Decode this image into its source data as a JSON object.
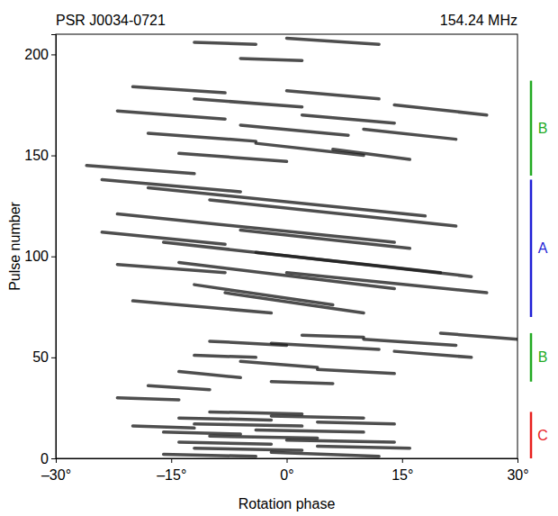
{
  "chart_data": {
    "type": "pulse_stack",
    "title": "PSR J0034-0721",
    "subtitle": "154.24 MHz",
    "x_label": "Rotation phase",
    "y_label": "Pulse number",
    "xlim": [
      -30,
      30
    ],
    "xticks": [
      {
        "value": -30,
        "label": "–30°"
      },
      {
        "value": -15,
        "label": "–15°"
      },
      {
        "value": 0,
        "label": "0°"
      },
      {
        "value": 15,
        "label": "15°"
      },
      {
        "value": 30,
        "label": "30°"
      }
    ],
    "ylim": [
      0,
      210
    ],
    "yticks": [
      0,
      50,
      100,
      150,
      200
    ],
    "modes": [
      {
        "label": "C",
        "color": "#e8201e",
        "start": 0,
        "end": 23
      },
      {
        "label": "B",
        "color": "#22aa22",
        "start": 38,
        "end": 62
      },
      {
        "label": "A",
        "color": "#1f1fd6",
        "start": 70,
        "end": 138
      },
      {
        "label": "B",
        "color": "#22aa22",
        "start": 140,
        "end": 187
      }
    ],
    "subpulses": [
      {
        "phase": [
          -16,
          -4
        ],
        "pulse": [
          2,
          1
        ]
      },
      {
        "phase": [
          -2,
          12
        ],
        "pulse": [
          3,
          1
        ]
      },
      {
        "phase": [
          -12,
          2
        ],
        "pulse": [
          5,
          4
        ]
      },
      {
        "phase": [
          4,
          16
        ],
        "pulse": [
          6,
          5
        ]
      },
      {
        "phase": [
          -14,
          -2
        ],
        "pulse": [
          8,
          7
        ]
      },
      {
        "phase": [
          0,
          14
        ],
        "pulse": [
          9,
          8
        ]
      },
      {
        "phase": [
          -10,
          4
        ],
        "pulse": [
          11,
          10
        ]
      },
      {
        "phase": [
          -16,
          -6
        ],
        "pulse": [
          13,
          12
        ]
      },
      {
        "phase": [
          -4,
          10
        ],
        "pulse": [
          14,
          13
        ]
      },
      {
        "phase": [
          -20,
          -12
        ],
        "pulse": [
          16,
          15
        ]
      },
      {
        "phase": [
          -12,
          2
        ],
        "pulse": [
          17,
          16
        ]
      },
      {
        "phase": [
          4,
          14
        ],
        "pulse": [
          18,
          17
        ]
      },
      {
        "phase": [
          -14,
          -2
        ],
        "pulse": [
          20,
          19
        ]
      },
      {
        "phase": [
          -2,
          10
        ],
        "pulse": [
          21,
          20
        ]
      },
      {
        "phase": [
          -10,
          2
        ],
        "pulse": [
          23,
          22
        ]
      },
      {
        "phase": [
          -22,
          -14
        ],
        "pulse": [
          30,
          29
        ]
      },
      {
        "phase": [
          -18,
          -10
        ],
        "pulse": [
          36,
          34
        ]
      },
      {
        "phase": [
          -2,
          6
        ],
        "pulse": [
          38,
          37
        ]
      },
      {
        "phase": [
          -14,
          -6
        ],
        "pulse": [
          43,
          40
        ]
      },
      {
        "phase": [
          4,
          14
        ],
        "pulse": [
          44,
          42
        ]
      },
      {
        "phase": [
          -6,
          4
        ],
        "pulse": [
          48,
          45
        ]
      },
      {
        "phase": [
          -12,
          -4
        ],
        "pulse": [
          51,
          50
        ]
      },
      {
        "phase": [
          14,
          24
        ],
        "pulse": [
          53,
          50
        ]
      },
      {
        "phase": [
          -2,
          12
        ],
        "pulse": [
          57,
          54
        ]
      },
      {
        "phase": [
          -10,
          0
        ],
        "pulse": [
          58,
          56
        ]
      },
      {
        "phase": [
          10,
          22
        ],
        "pulse": [
          59,
          56
        ]
      },
      {
        "phase": [
          2,
          10
        ],
        "pulse": [
          61,
          60
        ]
      },
      {
        "phase": [
          20,
          30
        ],
        "pulse": [
          62,
          59
        ]
      },
      {
        "phase": [
          -20,
          -2
        ],
        "pulse": [
          78,
          72
        ]
      },
      {
        "phase": [
          -8,
          10
        ],
        "pulse": [
          82,
          72
        ]
      },
      {
        "phase": [
          -12,
          6
        ],
        "pulse": [
          86,
          76
        ]
      },
      {
        "phase": [
          0,
          26
        ],
        "pulse": [
          92,
          82
        ]
      },
      {
        "phase": [
          -22,
          -8
        ],
        "pulse": [
          96,
          92
        ]
      },
      {
        "phase": [
          -14,
          14
        ],
        "pulse": [
          97,
          84
        ]
      },
      {
        "phase": [
          -4,
          24
        ],
        "pulse": [
          102,
          90
        ]
      },
      {
        "phase": [
          -16,
          20
        ],
        "pulse": [
          107,
          92
        ]
      },
      {
        "phase": [
          -24,
          -8
        ],
        "pulse": [
          112,
          106
        ]
      },
      {
        "phase": [
          -6,
          16
        ],
        "pulse": [
          113,
          104
        ]
      },
      {
        "phase": [
          -22,
          14
        ],
        "pulse": [
          121,
          107
        ]
      },
      {
        "phase": [
          -10,
          22
        ],
        "pulse": [
          128,
          115
        ]
      },
      {
        "phase": [
          -18,
          18
        ],
        "pulse": [
          134,
          120
        ]
      },
      {
        "phase": [
          -24,
          -6
        ],
        "pulse": [
          138,
          132
        ]
      },
      {
        "phase": [
          -26,
          -12
        ],
        "pulse": [
          145,
          141
        ]
      },
      {
        "phase": [
          -14,
          0
        ],
        "pulse": [
          151,
          147
        ]
      },
      {
        "phase": [
          6,
          16
        ],
        "pulse": [
          153,
          148
        ]
      },
      {
        "phase": [
          -4,
          10
        ],
        "pulse": [
          156,
          150
        ]
      },
      {
        "phase": [
          -18,
          -4
        ],
        "pulse": [
          161,
          157
        ]
      },
      {
        "phase": [
          10,
          22
        ],
        "pulse": [
          163,
          158
        ]
      },
      {
        "phase": [
          -6,
          8
        ],
        "pulse": [
          165,
          160
        ]
      },
      {
        "phase": [
          2,
          14
        ],
        "pulse": [
          170,
          166
        ]
      },
      {
        "phase": [
          -22,
          -8
        ],
        "pulse": [
          172,
          168
        ]
      },
      {
        "phase": [
          14,
          26
        ],
        "pulse": [
          175,
          170
        ]
      },
      {
        "phase": [
          -12,
          2
        ],
        "pulse": [
          178,
          174
        ]
      },
      {
        "phase": [
          0,
          12
        ],
        "pulse": [
          182,
          178
        ]
      },
      {
        "phase": [
          -20,
          -8
        ],
        "pulse": [
          184,
          181
        ]
      },
      {
        "phase": [
          -6,
          2
        ],
        "pulse": [
          198,
          197
        ]
      },
      {
        "phase": [
          -12,
          -4
        ],
        "pulse": [
          206,
          205
        ]
      },
      {
        "phase": [
          0,
          12
        ],
        "pulse": [
          208,
          205
        ]
      }
    ]
  }
}
